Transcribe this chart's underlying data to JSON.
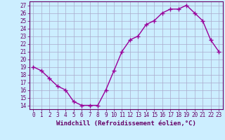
{
  "x": [
    0,
    1,
    2,
    3,
    4,
    5,
    6,
    7,
    8,
    9,
    10,
    11,
    12,
    13,
    14,
    15,
    16,
    17,
    18,
    19,
    20,
    21,
    22,
    23
  ],
  "y": [
    19.0,
    18.5,
    17.5,
    16.5,
    16.0,
    14.5,
    14.0,
    14.0,
    14.0,
    16.0,
    18.5,
    21.0,
    22.5,
    23.0,
    24.5,
    25.0,
    26.0,
    26.5,
    26.5,
    27.0,
    26.0,
    25.0,
    22.5,
    21.0
  ],
  "line_color": "#990099",
  "marker": "+",
  "marker_size": 4,
  "marker_linewidth": 1.0,
  "line_width": 1.0,
  "xlabel": "Windchill (Refroidissement éolien,°C)",
  "ylabel_ticks": [
    14,
    15,
    16,
    17,
    18,
    19,
    20,
    21,
    22,
    23,
    24,
    25,
    26,
    27
  ],
  "xlim": [
    -0.5,
    23.5
  ],
  "ylim": [
    13.5,
    27.5
  ],
  "xtick_labels": [
    "0",
    "1",
    "2",
    "3",
    "4",
    "5",
    "6",
    "7",
    "8",
    "9",
    "10",
    "11",
    "12",
    "13",
    "14",
    "15",
    "16",
    "17",
    "18",
    "19",
    "20",
    "21",
    "22",
    "23"
  ],
  "bg_color": "#cceeff",
  "grid_color": "#aaaacc",
  "axis_color": "#660066",
  "tick_fontsize": 5.5,
  "xlabel_fontsize": 6.5
}
